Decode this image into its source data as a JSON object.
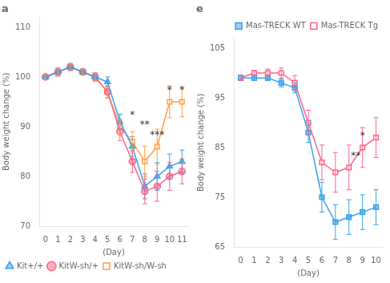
{
  "chart_data": [
    {
      "type": "line",
      "title": "a",
      "x": [
        0,
        1,
        2,
        3,
        4,
        5,
        6,
        7,
        8,
        9,
        10,
        11
      ],
      "xlim": [
        -0.5,
        11.5
      ],
      "xticks": [
        0,
        1,
        2,
        3,
        4,
        5,
        6,
        7,
        8,
        9,
        10,
        11
      ],
      "ylim": [
        70,
        112
      ],
      "yticks": [
        70,
        80,
        90,
        100,
        110
      ],
      "xlabel": "(Day)",
      "ylabel": "Body weight change (%)",
      "grid": false,
      "legend": "lower left",
      "series": [
        {
          "name": "Kit+/+",
          "marker": "triangle",
          "values": [
            100,
            101,
            102,
            101,
            100,
            99,
            91,
            86,
            78,
            80,
            82,
            83
          ],
          "errors": [
            0.5,
            0.8,
            0.7,
            0.6,
            0.8,
            1.0,
            1.5,
            2.0,
            2.5,
            2.8,
            2.5,
            2.3
          ]
        },
        {
          "name": "KitW-sh/+",
          "marker": "circle",
          "values": [
            100,
            101,
            102,
            101,
            100,
            97,
            89,
            83,
            77,
            78,
            80,
            81
          ],
          "errors": [
            0.5,
            0.8,
            0.7,
            0.6,
            0.8,
            1.2,
            1.8,
            2.2,
            2.5,
            3.0,
            2.8,
            2.5
          ]
        },
        {
          "name": "KitW-sh/W-sh",
          "marker": "open_square",
          "values": [
            100,
            101,
            102,
            101,
            100,
            97,
            90,
            87,
            83,
            86,
            95,
            95
          ],
          "errors": [
            0.5,
            0.8,
            0.7,
            0.6,
            0.8,
            1.2,
            1.5,
            2.0,
            3.0,
            3.5,
            3.2,
            3.0
          ]
        }
      ],
      "annotations": [
        {
          "x": 7,
          "y": 92,
          "text": "*"
        },
        {
          "x": 8,
          "y": 90,
          "text": "**"
        },
        {
          "x": 9,
          "y": 88,
          "text": "***"
        },
        {
          "x": 10,
          "y": 97,
          "text": "*"
        },
        {
          "x": 11,
          "y": 97,
          "text": "*"
        }
      ]
    },
    {
      "type": "line",
      "title": "e",
      "x": [
        0,
        1,
        2,
        3,
        4,
        5,
        6,
        7,
        8,
        9,
        10
      ],
      "xlim": [
        -0.5,
        10.5
      ],
      "xticks": [
        0,
        1,
        2,
        3,
        4,
        5,
        6,
        7,
        8,
        9,
        10
      ],
      "ylim": [
        65,
        107
      ],
      "yticks": [
        65,
        75,
        85,
        95,
        105
      ],
      "xlabel": "(Day)",
      "ylabel": "Body weight change (%)",
      "grid": false,
      "legend": "upper right",
      "series": [
        {
          "name": "Mas-TRECK WT",
          "marker": "square",
          "values": [
            99,
            99,
            99,
            98,
            97,
            88,
            75,
            70,
            71,
            72,
            73
          ],
          "errors": [
            0.5,
            0.5,
            0.5,
            0.8,
            1.0,
            2.0,
            3.0,
            3.5,
            3.5,
            3.5,
            3.5
          ]
        },
        {
          "name": "Mas-TRECK Tg",
          "marker": "open_square",
          "values": [
            99,
            100,
            100,
            100,
            98,
            90,
            82,
            80,
            81,
            85,
            87
          ],
          "errors": [
            0.5,
            0.5,
            0.8,
            1.0,
            1.5,
            2.5,
            3.5,
            4.0,
            4.5,
            4.0,
            4.0
          ]
        }
      ],
      "annotations": [
        {
          "x": 8.5,
          "y": 83,
          "text": "**"
        },
        {
          "x": 9.0,
          "y": 87,
          "text": "*"
        }
      ]
    }
  ]
}
